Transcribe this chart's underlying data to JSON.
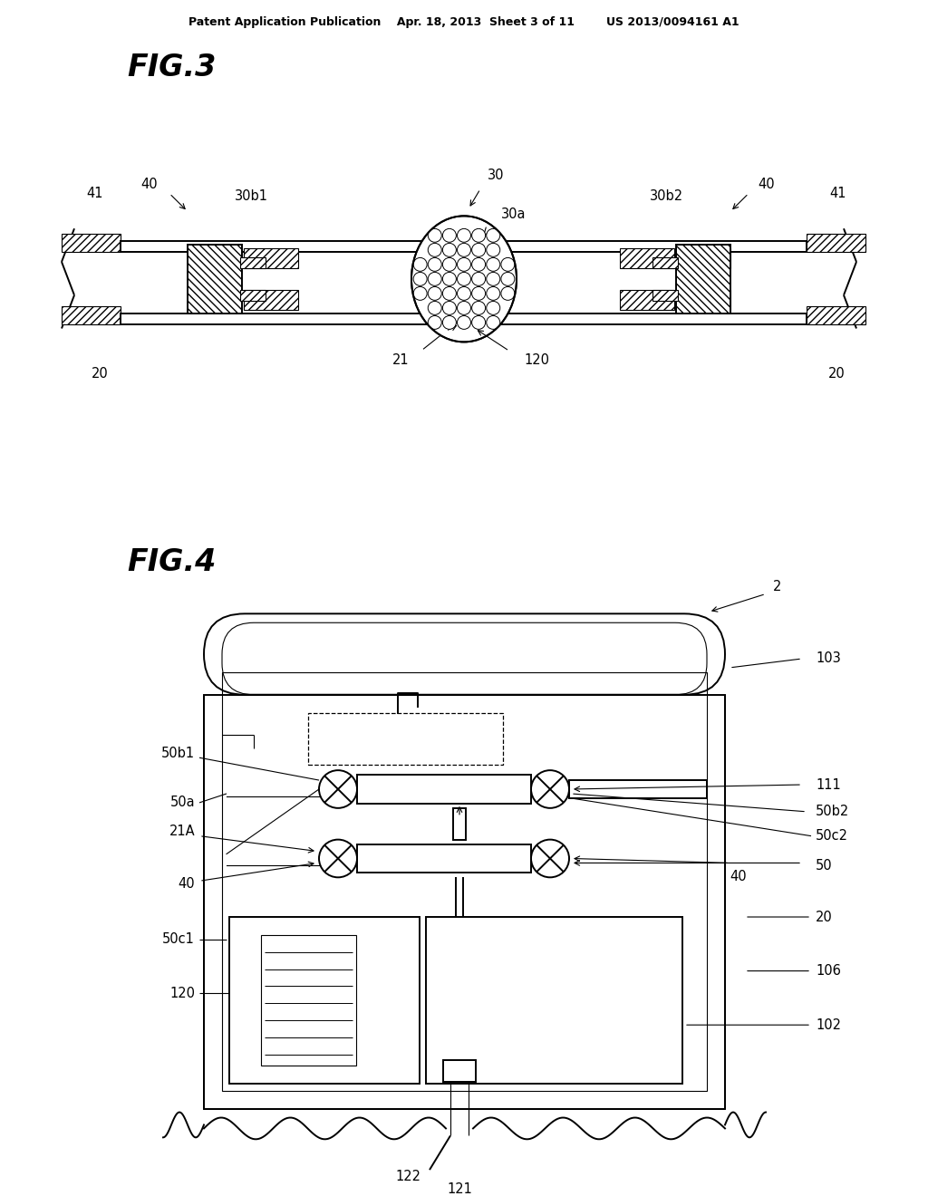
{
  "bg_color": "#ffffff",
  "lc": "#000000",
  "header": "Patent Application Publication    Apr. 18, 2013  Sheet 3 of 11        US 2013/0094161 A1",
  "fig3_label": "FIG.3",
  "fig4_label": "FIG.4",
  "lw": 1.4,
  "tlw": 0.8
}
